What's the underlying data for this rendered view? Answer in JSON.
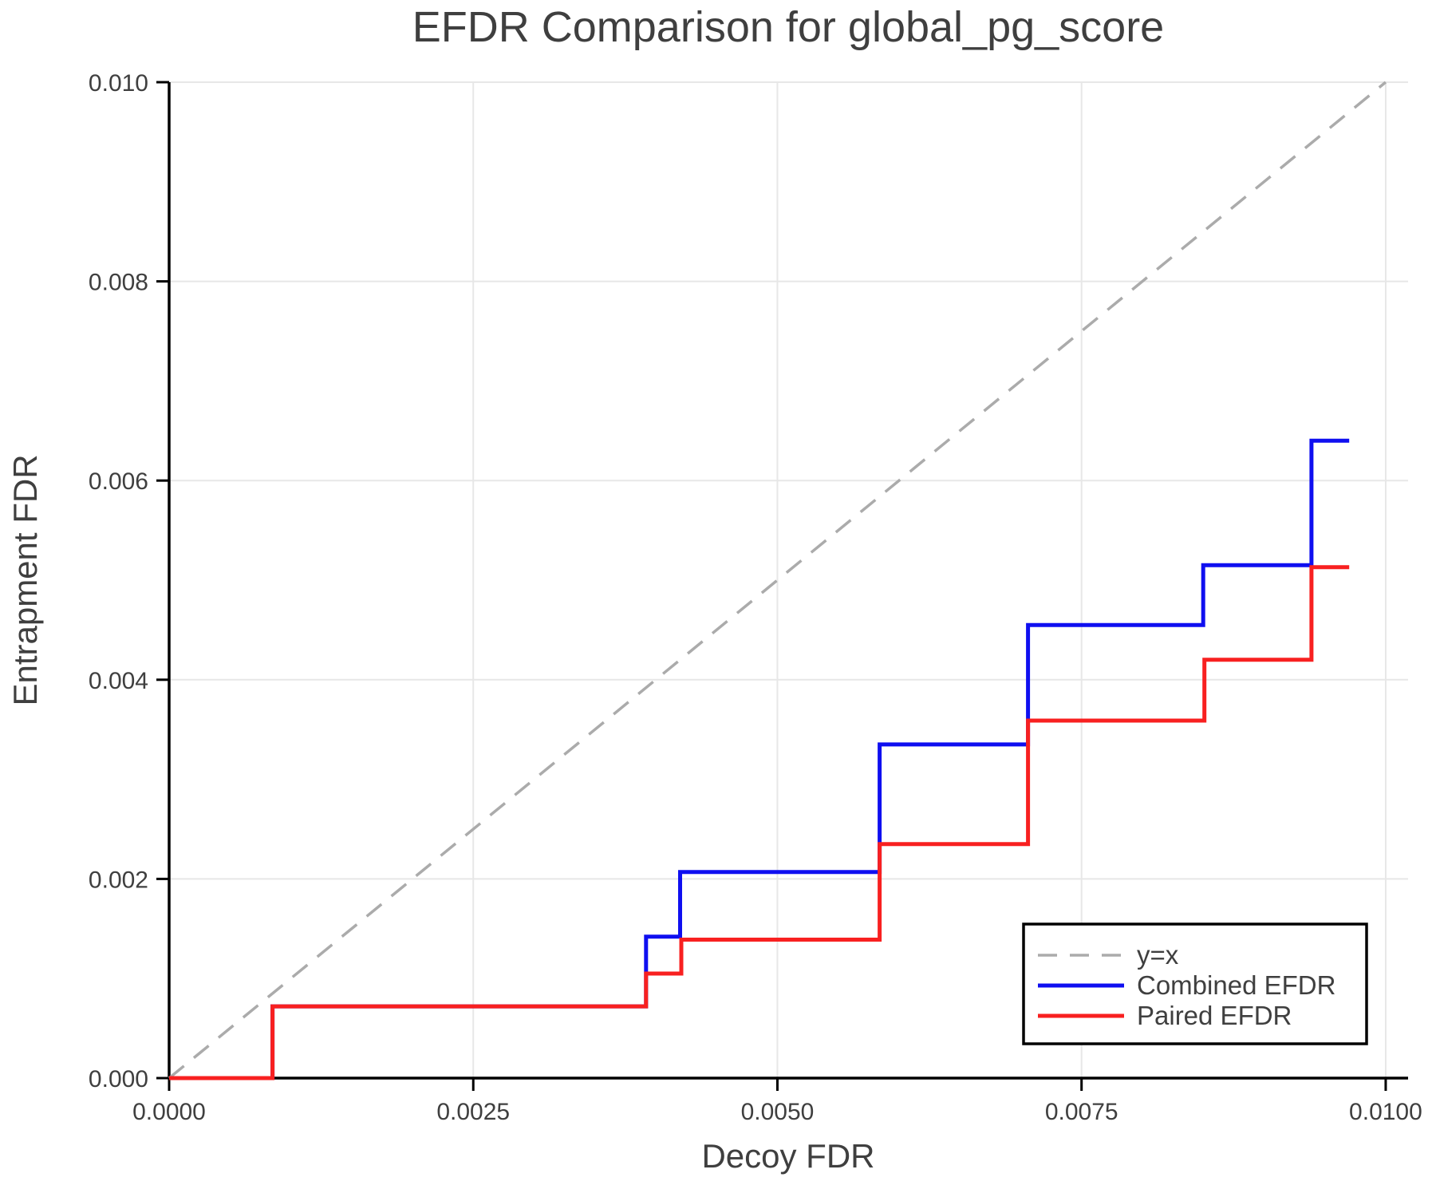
{
  "page": {
    "background_color": "#ffffff"
  },
  "chart_data": {
    "type": "line",
    "title": "EFDR Comparison for global_pg_score",
    "xlabel": "Decoy FDR",
    "ylabel": "Entrapment FDR",
    "xlim": [
      0.0,
      0.010184
    ],
    "ylim": [
      0.0,
      0.01
    ],
    "grid": true,
    "grid_color": "#e7e7e7",
    "spine_color": "#000000",
    "text_color": "#3f3f3f",
    "x_ticks": [
      {
        "value": 0.0,
        "label": "0.0000"
      },
      {
        "value": 0.0025,
        "label": "0.0025"
      },
      {
        "value": 0.005,
        "label": "0.0050"
      },
      {
        "value": 0.0075,
        "label": "0.0075"
      },
      {
        "value": 0.01,
        "label": "0.0100"
      }
    ],
    "y_ticks": [
      {
        "value": 0.0,
        "label": "0.000"
      },
      {
        "value": 0.002,
        "label": "0.002"
      },
      {
        "value": 0.004,
        "label": "0.004"
      },
      {
        "value": 0.006,
        "label": "0.006"
      },
      {
        "value": 0.008,
        "label": "0.008"
      },
      {
        "value": 0.01,
        "label": "0.010"
      }
    ],
    "legend": {
      "position": "lower right",
      "background": "#ffffff",
      "border_color": "#000000"
    },
    "series": [
      {
        "name": "y=x",
        "style": "dashed",
        "color": "#ababab",
        "width": 3.5,
        "points": [
          [
            0.0,
            0.0
          ],
          [
            0.01,
            0.01
          ]
        ]
      },
      {
        "name": "Combined EFDR",
        "style": "solid",
        "color": "#0f0ff0",
        "width": 5,
        "points": [
          [
            0.0,
            0.0
          ],
          [
            0.00085,
            0.0
          ],
          [
            0.00085,
            0.00072
          ],
          [
            0.00392,
            0.00072
          ],
          [
            0.00392,
            0.00142
          ],
          [
            0.0042,
            0.00142
          ],
          [
            0.0042,
            0.00207
          ],
          [
            0.00584,
            0.00207
          ],
          [
            0.00584,
            0.00335
          ],
          [
            0.00706,
            0.00335
          ],
          [
            0.00706,
            0.00455
          ],
          [
            0.0085,
            0.00455
          ],
          [
            0.0085,
            0.00515
          ],
          [
            0.00939,
            0.00515
          ],
          [
            0.00939,
            0.0064
          ],
          [
            0.0097,
            0.0064
          ]
        ]
      },
      {
        "name": "Paired EFDR",
        "style": "solid",
        "color": "#f82020",
        "width": 5,
        "points": [
          [
            0.0,
            0.0
          ],
          [
            0.00085,
            0.0
          ],
          [
            0.00085,
            0.00072
          ],
          [
            0.00392,
            0.00072
          ],
          [
            0.00392,
            0.00105
          ],
          [
            0.00421,
            0.00105
          ],
          [
            0.00421,
            0.00139
          ],
          [
            0.00584,
            0.00139
          ],
          [
            0.00584,
            0.00235
          ],
          [
            0.00706,
            0.00235
          ],
          [
            0.00706,
            0.00359
          ],
          [
            0.00851,
            0.00359
          ],
          [
            0.00851,
            0.0042
          ],
          [
            0.00939,
            0.0042
          ],
          [
            0.00939,
            0.00513
          ],
          [
            0.0097,
            0.00513
          ]
        ]
      }
    ]
  }
}
